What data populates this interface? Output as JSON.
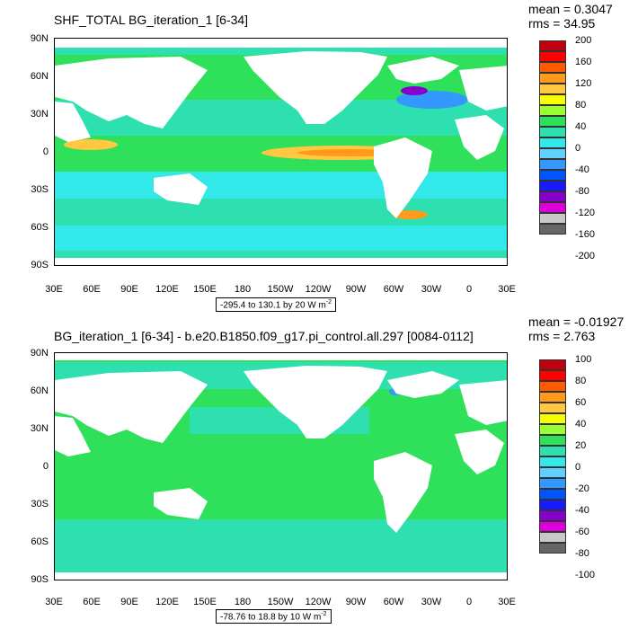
{
  "panels": [
    {
      "title": "SHF_TOTAL BG_iteration_1 [6-34]",
      "mean": "mean = 0.3047",
      "rms": "rms = 34.95",
      "range": "-295.4 to 130.1 by 20  W m",
      "range_exp": "-2",
      "lat_labels": [
        "90N",
        "60N",
        "30N",
        "0",
        "30S",
        "60S",
        "90S"
      ],
      "lon_labels": [
        "30E",
        "60E",
        "90E",
        "120E",
        "150E",
        "180",
        "150W",
        "120W",
        "90W",
        "60W",
        "30W",
        "0",
        "30E"
      ],
      "colorbar_labels": [
        "200",
        "160",
        "120",
        "80",
        "40",
        "0",
        "-40",
        "-80",
        "-120",
        "-160",
        "-200"
      ],
      "colors": [
        "#c0000f",
        "#ff0000",
        "#ff5a00",
        "#ff9a1a",
        "#ffc840",
        "#f5ff00",
        "#99ff33",
        "#2ee05a",
        "#2ee0b0",
        "#33e8e8",
        "#5fd0ff",
        "#3399ff",
        "#0055ff",
        "#1a1aff",
        "#8800cc",
        "#dd00dd",
        "#c8c8c8",
        "#666666"
      ]
    },
    {
      "title": "BG_iteration_1 [6-34] - b.e20.B1850.f09_g17.pi_control.all.297 [0084-0112]",
      "mean": "mean = -0.01927",
      "rms": "rms = 2.763",
      "range": "-78.76 to 18.8 by 10  W m",
      "range_exp": "-2",
      "lat_labels": [
        "90N",
        "60N",
        "30N",
        "0",
        "30S",
        "60S",
        "90S"
      ],
      "lon_labels": [
        "30E",
        "60E",
        "90E",
        "120E",
        "150E",
        "180",
        "150W",
        "120W",
        "90W",
        "60W",
        "30W",
        "0",
        "30E"
      ],
      "colorbar_labels": [
        "100",
        "80",
        "60",
        "40",
        "20",
        "0",
        "-20",
        "-40",
        "-60",
        "-80",
        "-100"
      ],
      "colors": [
        "#c0000f",
        "#ff0000",
        "#ff5a00",
        "#ff9a1a",
        "#ffc840",
        "#f5ff00",
        "#99ff33",
        "#2ee05a",
        "#2ee0b0",
        "#33e8e8",
        "#5fd0ff",
        "#3399ff",
        "#0055ff",
        "#1a1aff",
        "#8800cc",
        "#dd00dd",
        "#c8c8c8",
        "#666666"
      ]
    }
  ]
}
